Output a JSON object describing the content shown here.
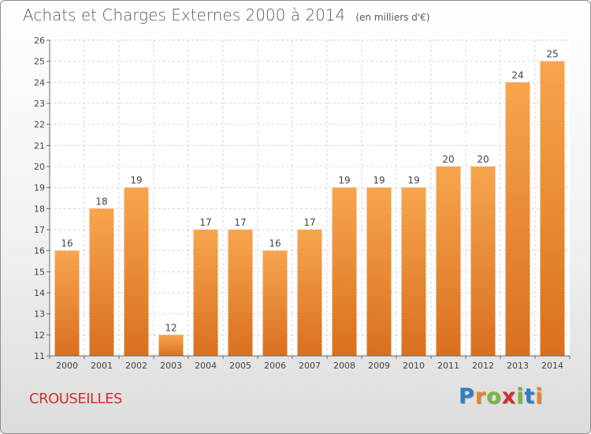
{
  "header": {
    "title": "Achats et Charges Externes 2000 à 2014",
    "unit": "(en milliers d'€)"
  },
  "footer": {
    "commune": "CROUSEILLES",
    "logo": [
      "P",
      "r",
      "o",
      "x",
      "i",
      "t",
      "i"
    ],
    "logo_colors": [
      "#2f7ec4",
      "#e8852b",
      "#7cb640",
      "#d2302c",
      "#7cb640",
      "#2f7ec4",
      "#e8852b"
    ]
  },
  "chart_data": {
    "type": "bar",
    "title": "Achats et Charges Externes 2000 à 2014",
    "subtitle": "(en milliers d'€)",
    "categories": [
      "2000",
      "2001",
      "2002",
      "2003",
      "2004",
      "2005",
      "2006",
      "2007",
      "2008",
      "2009",
      "2010",
      "2011",
      "2012",
      "2013",
      "2014"
    ],
    "values": [
      16,
      18,
      19,
      12,
      17,
      17,
      16,
      17,
      19,
      19,
      19,
      20,
      20,
      24,
      25
    ],
    "ylim": [
      11,
      26
    ],
    "yticks": [
      11,
      12,
      13,
      14,
      15,
      16,
      17,
      18,
      19,
      20,
      21,
      22,
      23,
      24,
      25,
      26
    ],
    "grid": true,
    "data_labels": true,
    "bar_color": "#e8852b"
  }
}
